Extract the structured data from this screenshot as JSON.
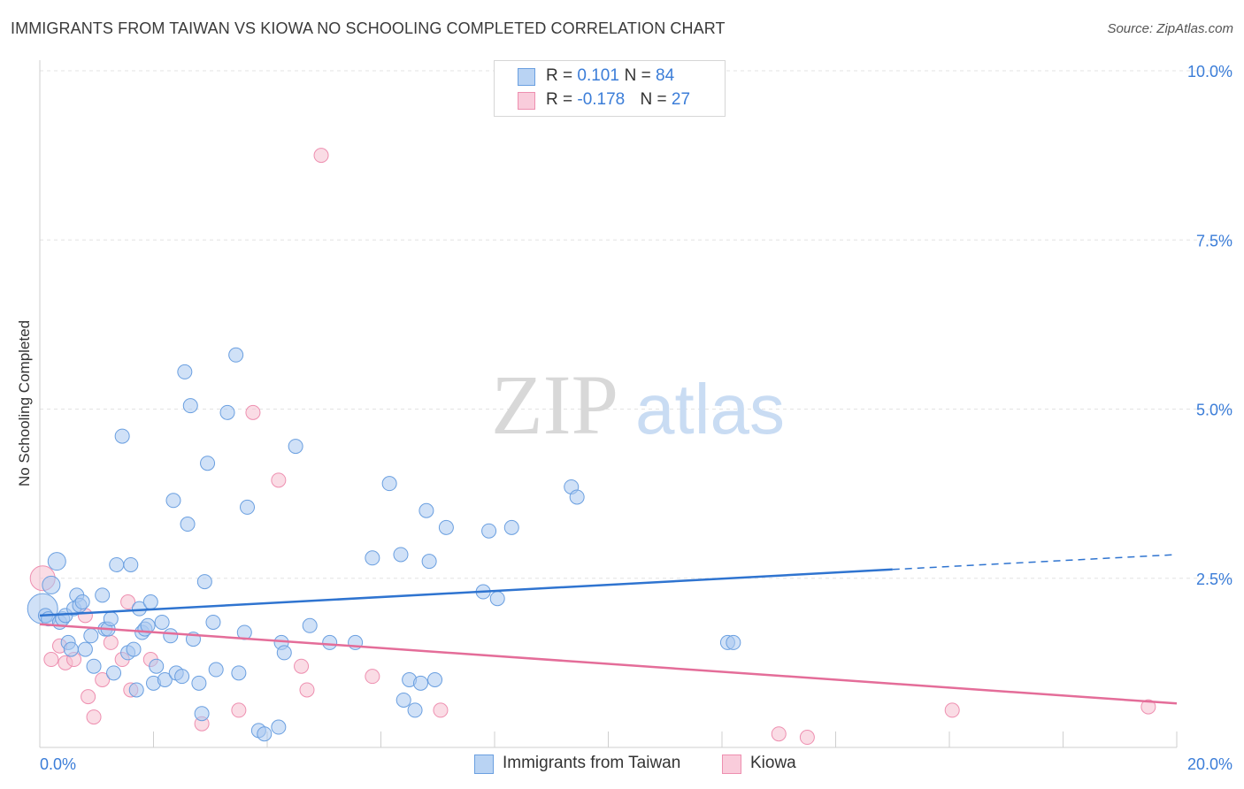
{
  "title": "IMMIGRANTS FROM TAIWAN VS KIOWA NO SCHOOLING COMPLETED CORRELATION CHART",
  "source": "Source: ZipAtlas.com",
  "watermark": {
    "zip": "ZIP",
    "atlas": "atlas"
  },
  "legend": {
    "rows": [
      {
        "r_label": "R = ",
        "r_value": "0.101",
        "n_label": "N = ",
        "n_value": "84"
      },
      {
        "r_label": "R = ",
        "r_value": "-0.178",
        "n_label": "N = ",
        "n_value": "27"
      }
    ]
  },
  "bottom_legend": [
    "Immigrants from Taiwan",
    "Kiowa"
  ],
  "colors": {
    "blue_fill": "#a9c8f0",
    "blue_stroke": "#6a9fe0",
    "blue_line": "#2f74d0",
    "pink_fill": "#f6bfd0",
    "pink_stroke": "#ee8fb0",
    "pink_line": "#e46d99",
    "axis_text": "#3b7dd8",
    "grid": "#e3e3e3"
  },
  "chart_data": {
    "type": "scatter",
    "title": "IMMIGRANTS FROM TAIWAN VS KIOWA NO SCHOOLING COMPLETED CORRELATION CHART",
    "xlabel": "",
    "ylabel": "No Schooling Completed",
    "xlim": [
      0,
      20
    ],
    "ylim": [
      0,
      10
    ],
    "x_tick_labels": [
      "0.0%",
      "20.0%"
    ],
    "y_ticks": [
      2.5,
      5.0,
      7.5,
      10.0
    ],
    "y_tick_labels": [
      "2.5%",
      "5.0%",
      "7.5%",
      "10.0%"
    ],
    "grid": true,
    "legend_position": "top-center",
    "series": [
      {
        "name": "Immigrants from Taiwan",
        "color": "#a9c8f0",
        "trend": {
          "x": [
            0,
            15
          ],
          "y": [
            1.95,
            2.63
          ],
          "dashed_to": [
            20,
            2.85
          ]
        },
        "points": [
          [
            0.05,
            2.05
          ],
          [
            0.1,
            1.95
          ],
          [
            0.15,
            1.9
          ],
          [
            0.2,
            2.4
          ],
          [
            0.3,
            2.75
          ],
          [
            0.35,
            1.85
          ],
          [
            0.4,
            1.9
          ],
          [
            0.45,
            1.95
          ],
          [
            0.5,
            1.55
          ],
          [
            0.55,
            1.45
          ],
          [
            0.6,
            2.05
          ],
          [
            0.65,
            2.25
          ],
          [
            0.7,
            2.1
          ],
          [
            0.75,
            2.15
          ],
          [
            0.8,
            1.45
          ],
          [
            0.9,
            1.65
          ],
          [
            0.95,
            1.2
          ],
          [
            1.1,
            2.25
          ],
          [
            1.15,
            1.75
          ],
          [
            1.2,
            1.75
          ],
          [
            1.25,
            1.9
          ],
          [
            1.3,
            1.1
          ],
          [
            1.35,
            2.7
          ],
          [
            1.45,
            4.6
          ],
          [
            1.55,
            1.4
          ],
          [
            1.6,
            2.7
          ],
          [
            1.65,
            1.45
          ],
          [
            1.7,
            0.85
          ],
          [
            1.75,
            2.05
          ],
          [
            1.8,
            1.7
          ],
          [
            1.85,
            1.75
          ],
          [
            1.9,
            1.8
          ],
          [
            1.95,
            2.15
          ],
          [
            2.0,
            0.95
          ],
          [
            2.05,
            1.2
          ],
          [
            2.15,
            1.85
          ],
          [
            2.2,
            1.0
          ],
          [
            2.3,
            1.65
          ],
          [
            2.35,
            3.65
          ],
          [
            2.4,
            1.1
          ],
          [
            2.5,
            1.05
          ],
          [
            2.55,
            5.55
          ],
          [
            2.6,
            3.3
          ],
          [
            2.65,
            5.05
          ],
          [
            2.7,
            1.6
          ],
          [
            2.8,
            0.95
          ],
          [
            2.85,
            0.5
          ],
          [
            2.9,
            2.45
          ],
          [
            2.95,
            4.2
          ],
          [
            3.05,
            1.85
          ],
          [
            3.1,
            1.15
          ],
          [
            3.3,
            4.95
          ],
          [
            3.45,
            5.8
          ],
          [
            3.5,
            1.1
          ],
          [
            3.6,
            1.7
          ],
          [
            3.65,
            3.55
          ],
          [
            3.85,
            0.25
          ],
          [
            3.95,
            0.2
          ],
          [
            4.2,
            0.3
          ],
          [
            4.25,
            1.55
          ],
          [
            4.3,
            1.4
          ],
          [
            4.5,
            4.45
          ],
          [
            4.75,
            1.8
          ],
          [
            5.1,
            1.55
          ],
          [
            5.55,
            1.55
          ],
          [
            5.85,
            2.8
          ],
          [
            6.15,
            3.9
          ],
          [
            6.35,
            2.85
          ],
          [
            6.4,
            0.7
          ],
          [
            6.5,
            1.0
          ],
          [
            6.6,
            0.55
          ],
          [
            6.7,
            0.95
          ],
          [
            6.8,
            3.5
          ],
          [
            6.85,
            2.75
          ],
          [
            6.95,
            1.0
          ],
          [
            7.15,
            3.25
          ],
          [
            7.8,
            2.3
          ],
          [
            7.9,
            3.2
          ],
          [
            8.05,
            2.2
          ],
          [
            8.3,
            3.25
          ],
          [
            9.35,
            3.85
          ],
          [
            9.45,
            3.7
          ],
          [
            12.1,
            1.55
          ],
          [
            12.2,
            1.55
          ]
        ]
      },
      {
        "name": "Kiowa",
        "color": "#f6bfd0",
        "trend": {
          "x": [
            0,
            20
          ],
          "y": [
            1.82,
            0.65
          ]
        },
        "points": [
          [
            0.05,
            2.5
          ],
          [
            0.2,
            1.3
          ],
          [
            0.35,
            1.5
          ],
          [
            0.45,
            1.25
          ],
          [
            0.6,
            1.3
          ],
          [
            0.8,
            1.95
          ],
          [
            0.85,
            0.75
          ],
          [
            0.95,
            0.45
          ],
          [
            1.1,
            1.0
          ],
          [
            1.25,
            1.55
          ],
          [
            1.45,
            1.3
          ],
          [
            1.55,
            2.15
          ],
          [
            1.6,
            0.85
          ],
          [
            1.95,
            1.3
          ],
          [
            2.85,
            0.35
          ],
          [
            3.5,
            0.55
          ],
          [
            3.75,
            4.95
          ],
          [
            4.2,
            3.95
          ],
          [
            4.6,
            1.2
          ],
          [
            4.7,
            0.85
          ],
          [
            4.95,
            8.75
          ],
          [
            5.85,
            1.05
          ],
          [
            7.05,
            0.55
          ],
          [
            13.0,
            0.2
          ],
          [
            13.5,
            0.15
          ],
          [
            16.05,
            0.55
          ],
          [
            19.5,
            0.6
          ]
        ]
      }
    ]
  }
}
